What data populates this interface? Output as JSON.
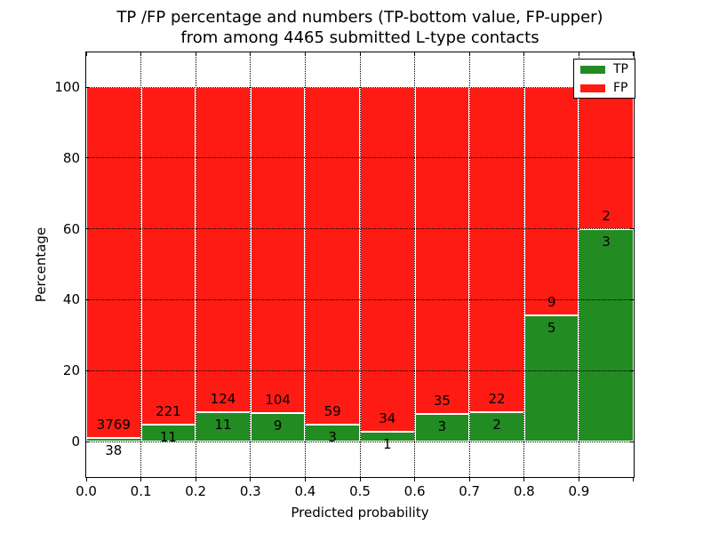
{
  "figure": {
    "title_line1": "TP /FP percentage and numbers (TP-bottom value, FP-upper)",
    "title_line2": "from among 4465 submitted L-type contacts",
    "xlabel": "Predicted probability",
    "ylabel": "Percentage",
    "background_color": "#ffffff"
  },
  "legend": {
    "position": "upper right",
    "items": [
      {
        "label": "TP",
        "color": "#228b22"
      },
      {
        "label": "FP",
        "color": "#fe1b13"
      }
    ]
  },
  "chart_data": {
    "type": "bar",
    "stacked": true,
    "title": "TP /FP percentage and numbers (TP-bottom value, FP-upper) from among 4465 submitted L-type contacts",
    "xlabel": "Predicted probability",
    "ylabel": "Percentage",
    "total_submitted_contacts": 4465,
    "bin_edges": [
      0.0,
      0.1,
      0.2,
      0.3,
      0.4,
      0.5,
      0.6,
      0.7,
      0.8,
      0.9,
      1.0
    ],
    "xtick_labels": [
      "0.0",
      "0.1",
      "0.2",
      "0.3",
      "0.4",
      "0.5",
      "0.6",
      "0.7",
      "0.8",
      "0.9"
    ],
    "ytick_values": [
      0,
      20,
      40,
      60,
      80,
      100
    ],
    "ytick_labels": [
      "0",
      "20",
      "40",
      "60",
      "80",
      "100"
    ],
    "xlim": [
      0.0,
      1.0
    ],
    "ylim": [
      -10,
      110
    ],
    "grid": true,
    "grid_style": "dotted",
    "legend_position": "upper right",
    "series": [
      {
        "name": "TP",
        "color": "#228b22",
        "counts": [
          38,
          11,
          11,
          9,
          3,
          1,
          3,
          2,
          5,
          3
        ],
        "percent": [
          1.0,
          4.7,
          8.1,
          8.0,
          4.8,
          2.9,
          7.9,
          8.3,
          35.7,
          60.0
        ]
      },
      {
        "name": "FP",
        "color": "#fe1b13",
        "counts": [
          3769,
          221,
          124,
          104,
          59,
          34,
          35,
          22,
          9,
          2
        ],
        "percent": [
          99.0,
          95.3,
          91.9,
          92.0,
          95.2,
          97.1,
          92.1,
          91.7,
          64.3,
          40.0
        ]
      }
    ]
  }
}
